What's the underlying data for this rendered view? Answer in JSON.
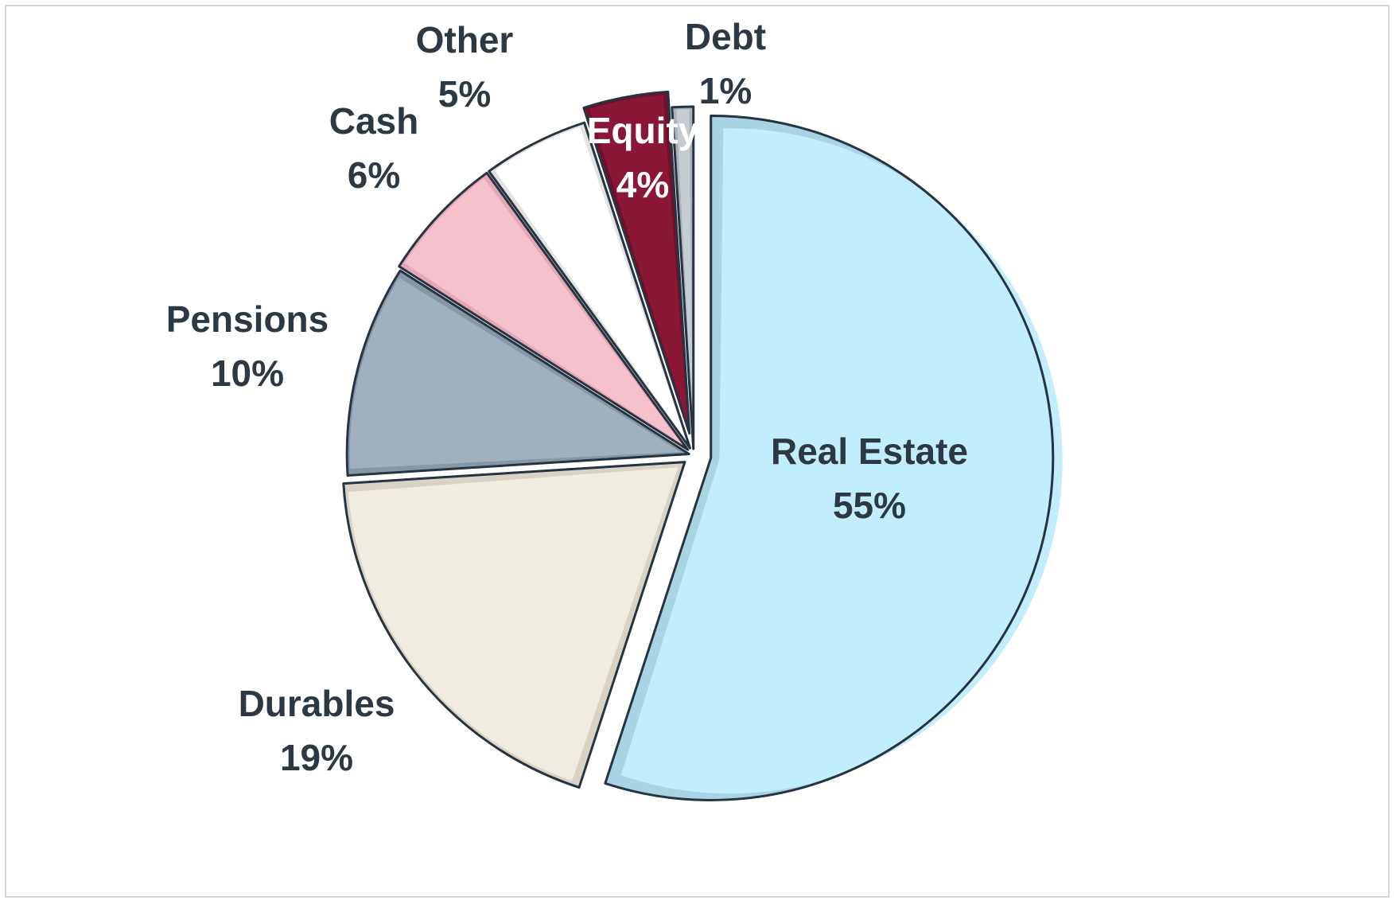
{
  "chart_data": {
    "type": "pie",
    "start": "12 o'clock",
    "direction": "clockwise",
    "exploded": true,
    "slices": [
      {
        "label": "Real Estate",
        "value": 55,
        "pct_label": "55%",
        "color": "#c2edfc",
        "edge": "#a9d4e4",
        "text_color": "#2c3844"
      },
      {
        "label": "Durables",
        "value": 19,
        "pct_label": "19%",
        "color": "#f1ece2",
        "edge": "#d9d3c6",
        "text_color": "#2c3844"
      },
      {
        "label": "Pensions",
        "value": 10,
        "pct_label": "10%",
        "color": "#9fb1bf",
        "edge": "#8698a6",
        "text_color": "#2c3844"
      },
      {
        "label": "Cash",
        "value": 6,
        "pct_label": "6%",
        "color": "#f4c1cc",
        "edge": "#e4a7b5",
        "text_color": "#2c3844"
      },
      {
        "label": "Other",
        "value": 5,
        "pct_label": "5%",
        "color": "#ffffff",
        "edge": "#e2e2e2",
        "text_color": "#2c3844"
      },
      {
        "label": "Equity",
        "value": 4,
        "pct_label": "4%",
        "color": "#8a1736",
        "edge": "#70102a",
        "text_color": "#ffffff"
      },
      {
        "label": "Debt",
        "value": 1,
        "pct_label": "1%",
        "color": "#c5ccd2",
        "edge": "#aab3ba",
        "text_color": "#2c3844"
      }
    ],
    "outline_color": "#263340"
  }
}
